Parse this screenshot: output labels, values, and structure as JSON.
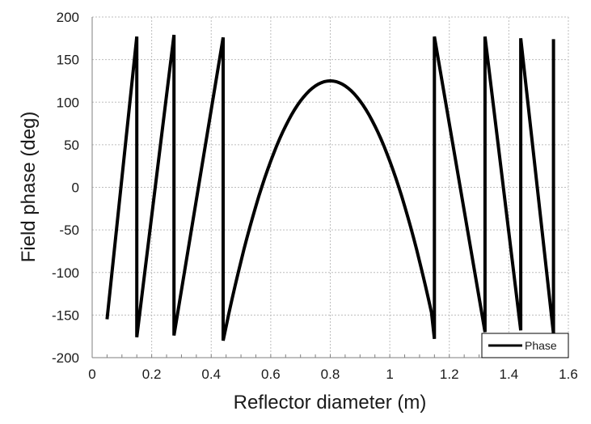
{
  "chart_data": {
    "type": "line",
    "title": "",
    "xlabel": "Reflector diameter (m)",
    "ylabel": "Field phase (deg)",
    "xlim": [
      0,
      1.6
    ],
    "ylim": [
      -200,
      200
    ],
    "xticks": [
      0,
      0.2,
      0.4,
      0.6,
      0.8,
      1,
      1.2,
      1.4,
      1.6
    ],
    "xtick_labels": [
      "0",
      "0.2",
      "0.4",
      "0.6",
      "0.8",
      "1",
      "1.2",
      "1.4",
      "1.6"
    ],
    "yticks": [
      200,
      150,
      100,
      50,
      0,
      -50,
      -100,
      -150,
      -200
    ],
    "ytick_labels": [
      "200",
      "150",
      "100",
      "50",
      "0",
      "-50",
      "-100",
      "-150",
      "-200"
    ],
    "grid": true,
    "legend": {
      "position": "lower right",
      "entries": [
        "Phase"
      ]
    },
    "series": [
      {
        "name": "Phase",
        "color": "#000000",
        "x": [
          0.05,
          0.15,
          0.15,
          0.275,
          0.275,
          0.44,
          0.44,
          0.5,
          0.6,
          0.7,
          0.8,
          0.9,
          1.0,
          1.1,
          1.15,
          1.15,
          1.32,
          1.32,
          1.44,
          1.44,
          1.55,
          1.55
        ],
        "y": [
          -155,
          177,
          -176,
          179,
          -174,
          176,
          -180,
          -100,
          25,
          100,
          125,
          100,
          25,
          -100,
          -178,
          177,
          -170,
          177,
          -168,
          175,
          -172,
          174
        ]
      }
    ]
  }
}
